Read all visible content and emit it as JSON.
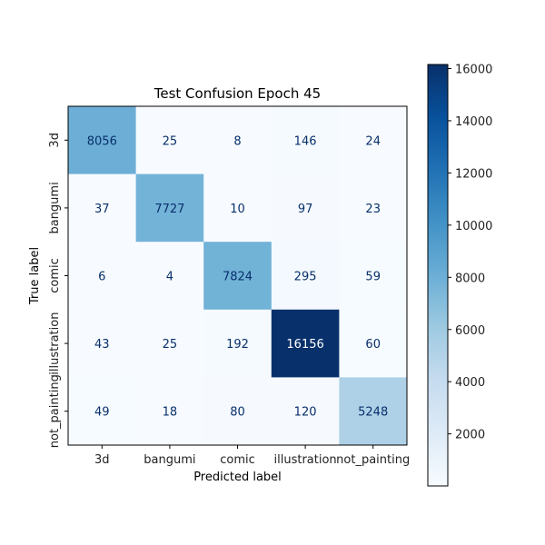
{
  "chart_data": {
    "type": "heatmap",
    "title": "Test Confusion Epoch 45",
    "xlabel": "Predicted label",
    "ylabel": "True label",
    "x_categories": [
      "3d",
      "bangumi",
      "comic",
      "illustration",
      "not_painting"
    ],
    "y_categories": [
      "3d",
      "bangumi",
      "comic",
      "illustration",
      "not_painting"
    ],
    "values": [
      [
        8056,
        25,
        8,
        146,
        24
      ],
      [
        37,
        7727,
        10,
        97,
        23
      ],
      [
        6,
        4,
        7824,
        295,
        59
      ],
      [
        43,
        25,
        192,
        16156,
        60
      ],
      [
        49,
        18,
        80,
        120,
        5248
      ]
    ],
    "colormap": "Blues",
    "colorbar": {
      "min": 4,
      "max": 16156,
      "ticks": [
        2000,
        4000,
        6000,
        8000,
        10000,
        12000,
        14000,
        16000
      ],
      "tick_labels": [
        "2000",
        "4000",
        "6000",
        "8000",
        "10000",
        "12000",
        "14000",
        "16000"
      ]
    },
    "grid": false
  }
}
